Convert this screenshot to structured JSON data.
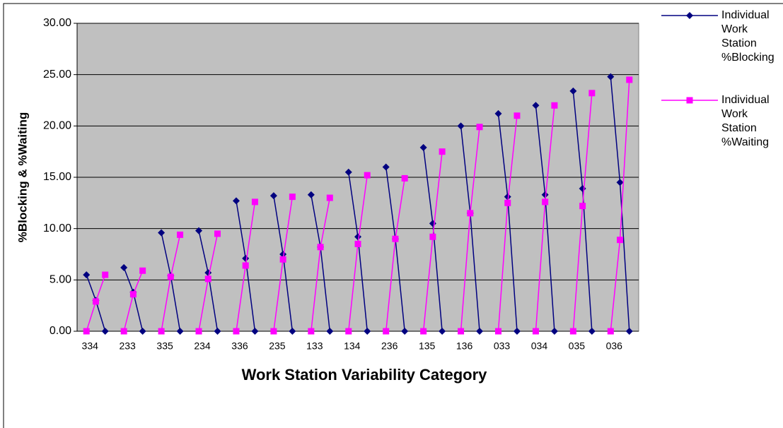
{
  "chart_data": {
    "type": "line",
    "xlabel": "Work Station Variability Category",
    "ylabel": "%Blocking & %Waiting",
    "categories": [
      "334",
      null,
      null,
      null,
      "233",
      null,
      null,
      null,
      "335",
      null,
      null,
      null,
      "234",
      null,
      null,
      null,
      "336",
      null,
      null,
      null,
      "235",
      null,
      null,
      null,
      "133",
      null,
      null,
      null,
      "134",
      null,
      null,
      null,
      "236",
      null,
      null,
      null,
      "135",
      null,
      null,
      null,
      "136",
      null,
      null,
      null,
      "033",
      null,
      null,
      null,
      "034",
      null,
      null,
      null,
      "035",
      null,
      null,
      null,
      "036",
      null,
      null
    ],
    "series": [
      {
        "name": "Individual Work Station %Blocking",
        "color": "#000080",
        "marker": "diamond",
        "values": [
          5.5,
          3.0,
          0,
          null,
          6.2,
          3.8,
          0,
          null,
          9.6,
          5.4,
          0,
          null,
          9.8,
          5.7,
          0,
          null,
          12.7,
          7.1,
          0,
          null,
          13.2,
          7.5,
          0,
          null,
          13.3,
          8.2,
          0,
          null,
          15.5,
          9.2,
          0,
          null,
          16.0,
          9.0,
          0,
          null,
          17.9,
          10.5,
          0,
          null,
          20.0,
          11.5,
          0,
          null,
          21.2,
          13.1,
          0,
          null,
          22.0,
          13.3,
          0,
          null,
          23.4,
          13.9,
          0,
          null,
          24.8,
          14.5,
          0
        ]
      },
      {
        "name": "Individual Work Station %Waiting",
        "color": "#ff00ff",
        "marker": "square",
        "values": [
          0,
          2.9,
          5.5,
          null,
          0,
          3.6,
          5.9,
          null,
          0,
          5.3,
          9.4,
          null,
          0,
          5.1,
          9.5,
          null,
          0,
          6.4,
          12.6,
          null,
          0,
          7.0,
          13.1,
          null,
          0,
          8.2,
          13.0,
          null,
          0,
          8.5,
          15.2,
          null,
          0,
          9.0,
          14.9,
          null,
          0,
          9.2,
          17.5,
          null,
          0,
          11.5,
          19.9,
          null,
          0,
          12.5,
          21.0,
          null,
          0,
          12.6,
          22.0,
          null,
          0,
          12.2,
          23.2,
          null,
          0,
          8.9,
          24.5
        ]
      }
    ],
    "ylim": [
      0,
      30
    ],
    "yticks": [
      {
        "value": 0,
        "label": "0.00"
      },
      {
        "value": 5,
        "label": "5.00"
      },
      {
        "value": 10,
        "label": "10.00"
      },
      {
        "value": 15,
        "label": "15.00"
      },
      {
        "value": 20,
        "label": "20.00"
      },
      {
        "value": 25,
        "label": "25.00"
      },
      {
        "value": 30,
        "label": "30.00"
      }
    ],
    "grid": true,
    "legend": "right"
  }
}
